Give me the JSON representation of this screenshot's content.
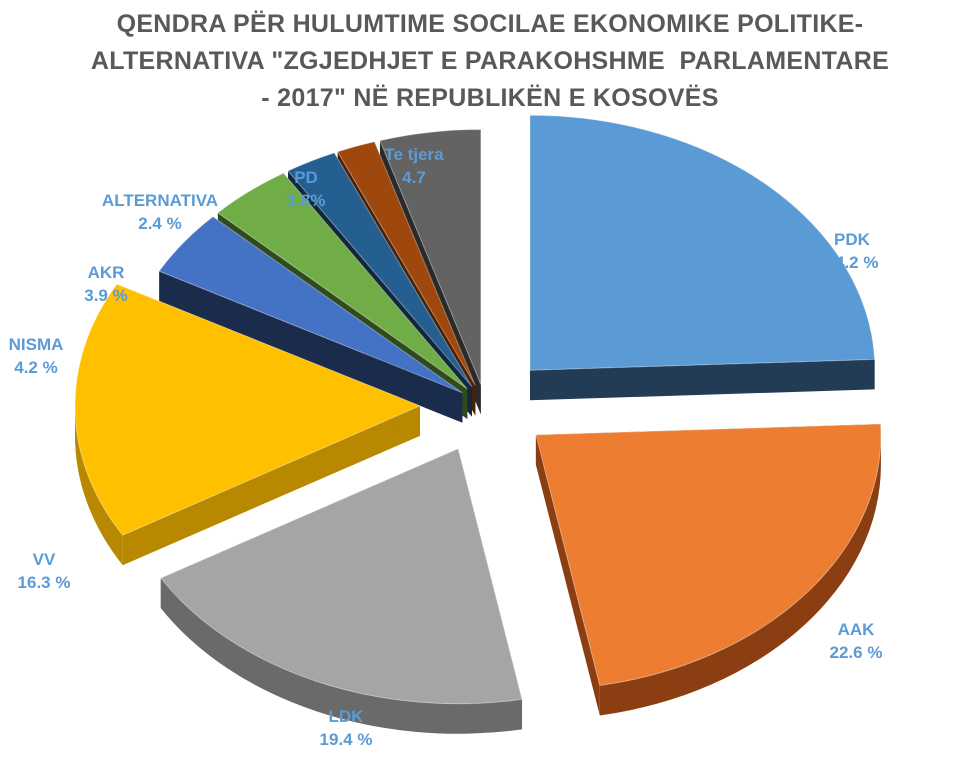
{
  "chart_data": {
    "type": "pie",
    "title_lines": [
      "QENDRA PËR HULUMTIME SOCILAE EKONOMIKE POLITIKE-",
      "ALTERNATIVA \"ZGJEDHJET E PARAKOHSHME  PARLAMENTARE",
      "- 2017\" NË REPUBLIKËN E KOSOVËS"
    ],
    "label_color": "#5b9bd5",
    "slices": [
      {
        "name": "PDK",
        "value": 24.2,
        "label_value": "24.2 %",
        "color": "#5b9bd5",
        "side_color": "#223c55",
        "exploded": true
      },
      {
        "name": "AAK",
        "value": 22.6,
        "label_value": "22.6 %",
        "color": "#ed7d31",
        "side_color": "#8a3e12",
        "exploded": true
      },
      {
        "name": "LDK",
        "value": 19.4,
        "label_value": "19.4 %",
        "color": "#a5a5a5",
        "side_color": "#6a6a6a",
        "exploded": true
      },
      {
        "name": "VV",
        "value": 16.3,
        "label_value": "16.3 %",
        "color": "#ffc000",
        "side_color": "#b88800",
        "exploded": true
      },
      {
        "name": "NISMA",
        "value": 4.2,
        "label_value": "4.2 %",
        "color": "#4472c4",
        "side_color": "#1a2b4c",
        "exploded": false
      },
      {
        "name": "AKR",
        "value": 3.9,
        "label_value": "3.9 %",
        "color": "#70ad47",
        "side_color": "#2f4a1c",
        "exploded": false
      },
      {
        "name": "ALTERNATIVA",
        "value": 2.4,
        "label_value": "2.4 %",
        "color": "#255e91",
        "side_color": "#10273c",
        "exploded": false
      },
      {
        "name": "PD",
        "value": 1.8,
        "label_value": "1.8%",
        "color": "#9e480e",
        "side_color": "#4a2006",
        "exploded": false
      },
      {
        "name": "Te tjera",
        "value": 4.7,
        "label_value": "4.7",
        "color": "#636363",
        "side_color": "#2a2a2a",
        "exploded": false
      }
    ]
  }
}
